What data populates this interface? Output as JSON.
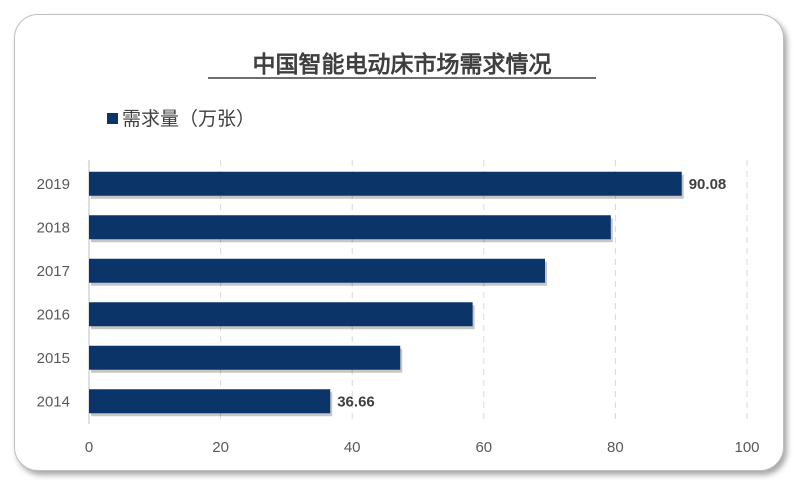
{
  "colors": {
    "bar": "#0b3469",
    "grid": "#d9d9d9",
    "text": "#404040"
  },
  "chart_data": {
    "type": "bar",
    "orientation": "horizontal",
    "title": "中国智能电动床市场需求情况",
    "legend": {
      "position": "top-left",
      "entries": [
        "需求量（万张）"
      ]
    },
    "categories": [
      "2019",
      "2018",
      "2017",
      "2016",
      "2015",
      "2014"
    ],
    "series": [
      {
        "name": "需求量（万张）",
        "values": [
          90.08,
          79.3,
          69.3,
          58.3,
          47.3,
          36.66
        ]
      }
    ],
    "data_labels": [
      {
        "category": "2019",
        "text": "90.08"
      },
      {
        "category": "2014",
        "text": "36.66"
      }
    ],
    "xlim": [
      0,
      100
    ],
    "x_ticks": [
      "0",
      "20",
      "40",
      "60",
      "80",
      "100"
    ],
    "xlabel": "",
    "ylabel": "",
    "grid": "vertical dashed"
  }
}
